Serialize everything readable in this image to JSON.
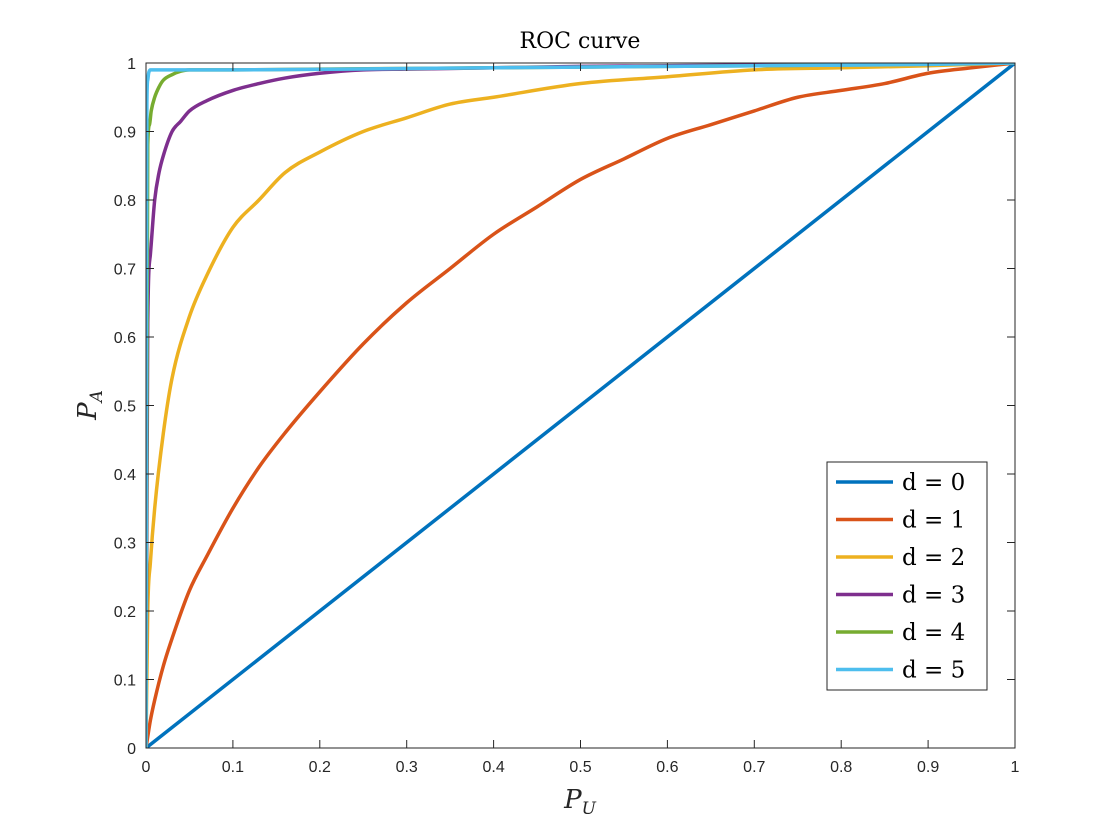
{
  "chart_data": {
    "type": "line",
    "title": "ROC curve",
    "xlabel": {
      "main": "P",
      "sub": "U"
    },
    "ylabel": {
      "main": "P",
      "sub": "A"
    },
    "xlim": [
      0,
      1
    ],
    "ylim": [
      0,
      1
    ],
    "xticks": [
      0,
      0.1,
      0.2,
      0.3,
      0.4,
      0.5,
      0.6,
      0.7,
      0.8,
      0.9,
      1
    ],
    "yticks": [
      0,
      0.1,
      0.2,
      0.3,
      0.4,
      0.5,
      0.6,
      0.7,
      0.8,
      0.9,
      1
    ],
    "xtick_labels": [
      "0",
      "0.1",
      "0.2",
      "0.3",
      "0.4",
      "0.5",
      "0.6",
      "0.7",
      "0.8",
      "0.9",
      "1"
    ],
    "ytick_labels": [
      "0",
      "0.1",
      "0.2",
      "0.3",
      "0.4",
      "0.5",
      "0.6",
      "0.7",
      "0.8",
      "0.9",
      "1"
    ],
    "grid": false,
    "legend_position": "bottom-right",
    "series": [
      {
        "name": "d = 0",
        "color": "#0072BD",
        "x": [
          0,
          1
        ],
        "y": [
          0,
          1
        ]
      },
      {
        "name": "d = 1",
        "color": "#D95319",
        "x": [
          0,
          0.005,
          0.01,
          0.02,
          0.03,
          0.05,
          0.07,
          0.1,
          0.13,
          0.16,
          0.2,
          0.25,
          0.3,
          0.35,
          0.4,
          0.45,
          0.5,
          0.55,
          0.6,
          0.65,
          0.7,
          0.75,
          0.8,
          0.85,
          0.9,
          0.95,
          1
        ],
        "y": [
          0,
          0.04,
          0.07,
          0.12,
          0.16,
          0.23,
          0.28,
          0.35,
          0.41,
          0.46,
          0.52,
          0.59,
          0.65,
          0.7,
          0.75,
          0.79,
          0.83,
          0.86,
          0.89,
          0.91,
          0.93,
          0.95,
          0.96,
          0.97,
          0.985,
          0.993,
          1
        ]
      },
      {
        "name": "d = 2",
        "color": "#EDB120",
        "x": [
          0,
          0.002,
          0.005,
          0.01,
          0.02,
          0.03,
          0.05,
          0.07,
          0.1,
          0.13,
          0.16,
          0.2,
          0.25,
          0.3,
          0.35,
          0.4,
          0.5,
          0.6,
          0.7,
          0.8,
          0.9,
          1
        ],
        "y": [
          0,
          0.2,
          0.27,
          0.35,
          0.46,
          0.54,
          0.63,
          0.69,
          0.76,
          0.8,
          0.84,
          0.87,
          0.9,
          0.92,
          0.94,
          0.95,
          0.97,
          0.98,
          0.99,
          0.993,
          0.996,
          1
        ]
      },
      {
        "name": "d = 3",
        "color": "#7E2F8E",
        "x": [
          0,
          0.002,
          0.005,
          0.01,
          0.015,
          0.02,
          0.03,
          0.04,
          0.05,
          0.07,
          0.1,
          0.13,
          0.16,
          0.2,
          0.25,
          0.3,
          0.4,
          0.5,
          0.6,
          0.7,
          0.8,
          0.9,
          1
        ],
        "y": [
          0,
          0.62,
          0.72,
          0.8,
          0.84,
          0.865,
          0.9,
          0.915,
          0.93,
          0.945,
          0.96,
          0.97,
          0.978,
          0.985,
          0.99,
          0.991,
          0.993,
          0.995,
          0.996,
          0.997,
          0.998,
          0.999,
          1
        ]
      },
      {
        "name": "d = 4",
        "color": "#77AC30",
        "x": [
          0,
          0.002,
          0.004,
          0.006,
          0.01,
          0.015,
          0.02,
          0.03,
          0.04,
          0.05,
          0.07,
          0.1,
          0.2,
          0.4,
          0.6,
          0.8,
          1
        ],
        "y": [
          0,
          0.88,
          0.91,
          0.93,
          0.95,
          0.965,
          0.975,
          0.983,
          0.988,
          0.99,
          0.99,
          0.99,
          0.991,
          0.993,
          0.995,
          0.997,
          1
        ]
      },
      {
        "name": "d = 5",
        "color": "#4DBEEE",
        "x": [
          0,
          0.001,
          0.002,
          0.003,
          0.005,
          0.008,
          0.01,
          0.05,
          0.1,
          0.3,
          0.5,
          0.7,
          0.9,
          1
        ],
        "y": [
          0,
          0.94,
          0.975,
          0.985,
          0.99,
          0.99,
          0.99,
          0.99,
          0.99,
          0.992,
          0.994,
          0.996,
          0.998,
          1
        ]
      }
    ]
  }
}
